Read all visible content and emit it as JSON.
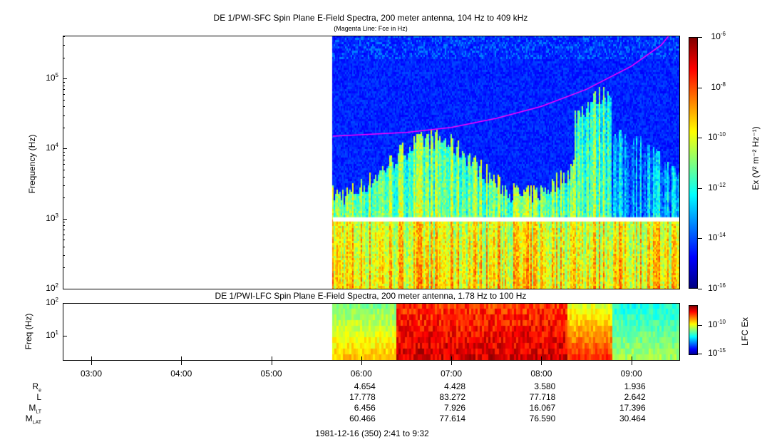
{
  "top_panel": {
    "title": "DE 1/PWI-SFC  Spin Plane E-Field Spectra, 200 meter antenna, 104 Hz to 409 kHz",
    "subtitle": "(Magenta Line: Fce in Hz)",
    "ylabel": "Frequency (Hz)",
    "yticks": [
      "10",
      "10",
      "10",
      "10"
    ],
    "yexp": [
      "2",
      "3",
      "4",
      "5"
    ],
    "colorbar_label": "Ex (V² m⁻² Hz⁻¹)",
    "colorbar_ticks": [
      "-6",
      "-8",
      "-10",
      "-12",
      "-14",
      "-16"
    ]
  },
  "bottom_panel": {
    "title": "DE 1/PWI-LFC  Spin Plane E-Field Spectra, 200 meter antenna, 1.78 Hz to 100 Hz",
    "ylabel": "Freq (Hz)",
    "yexp": [
      "2",
      "1"
    ],
    "colorbar_label": "LFC Ex",
    "colorbar_ticks": [
      "-10",
      "-15"
    ]
  },
  "ephemeris": {
    "labels": [
      "Re",
      "L",
      "MLT",
      "MLAT"
    ],
    "columns": [
      {
        "time": "06:00",
        "values": [
          "4.654",
          "17.778",
          "6.456",
          "60.466"
        ]
      },
      {
        "time": "07:00",
        "values": [
          "4.428",
          "83.272",
          "7.926",
          "77.614"
        ]
      },
      {
        "time": "08:00",
        "values": [
          "3.580",
          "77.718",
          "16.067",
          "76.590"
        ]
      },
      {
        "time": "09:00",
        "values": [
          "1.936",
          "2.642",
          "17.396",
          "30.464"
        ]
      }
    ],
    "date_range": "1981-12-16 (350) 2:41 to 9:32"
  },
  "chart_data": [
    {
      "type": "heatmap",
      "title": "DE 1/PWI-SFC  Spin Plane E-Field Spectra, 200 meter antenna, 104 Hz to 409 kHz",
      "ylabel": "Frequency (Hz)",
      "yscale": "log",
      "ylim": [
        100,
        409000
      ],
      "xlim": [
        "02:41",
        "09:32"
      ],
      "xticks": [
        "03:00",
        "04:00",
        "05:00",
        "06:00",
        "07:00",
        "08:00",
        "09:00"
      ],
      "data_start": "05:41",
      "colorscale": "jet",
      "clim": [
        1e-16,
        1e-06
      ],
      "fce_line": {
        "color": "#ff00ff",
        "x": [
          "05:41",
          "06:30",
          "07:00",
          "07:30",
          "08:00",
          "08:30",
          "09:00",
          "09:20",
          "09:25"
        ],
        "y": [
          15000,
          17000,
          20000,
          27000,
          40000,
          70000,
          150000,
          300000,
          409000
        ]
      }
    },
    {
      "type": "heatmap",
      "title": "DE 1/PWI-LFC  Spin Plane E-Field Spectra, 200 meter antenna, 1.78 Hz to 100 Hz",
      "ylabel": "Freq (Hz)",
      "yscale": "log",
      "ylim": [
        1.78,
        100
      ],
      "colorscale": "jet",
      "clim": [
        1e-16,
        1e-08
      ]
    }
  ]
}
